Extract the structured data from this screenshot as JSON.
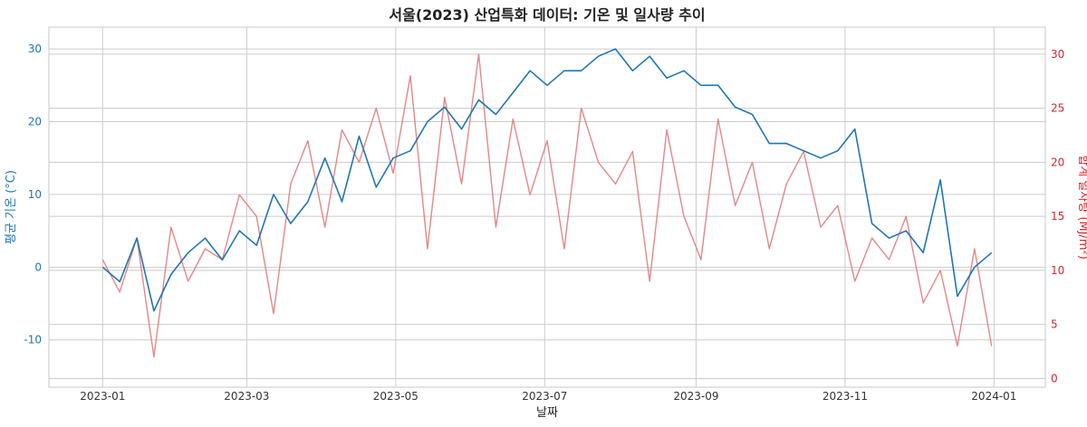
{
  "chart_data": {
    "type": "line",
    "title": "서울(2023) 산업특화 데이터: 기온 및 일사량 추이",
    "xlabel": "날짜",
    "ylabel_left": "평균 기온 (°C)",
    "ylabel_right": "합계 일사량 (MJ/m²)",
    "x_range": [
      "2022-12-10",
      "2024-01-22"
    ],
    "x_ticks": [
      "2023-01",
      "2023-03",
      "2023-05",
      "2023-07",
      "2023-09",
      "2023-11",
      "2024-01"
    ],
    "y_left_range": [
      -16.5,
      33
    ],
    "y_left_ticks": [
      -10,
      0,
      10,
      20,
      30
    ],
    "y_right_range": [
      -0.8,
      32.5
    ],
    "y_right_ticks": [
      0,
      5,
      10,
      15,
      20,
      25,
      30
    ],
    "grid": true,
    "colors": {
      "temperature": "#1f77b4",
      "radiation": "#e07b7b",
      "left_axis_text": "#1f77b4",
      "right_axis_text": "#d62728"
    },
    "series": [
      {
        "axis": "left",
        "color": "#1f77b4",
        "x": [
          "2023-01-01",
          "2023-01-08",
          "2023-01-15",
          "2023-01-22",
          "2023-01-29",
          "2023-02-05",
          "2023-02-12",
          "2023-02-19",
          "2023-02-26",
          "2023-03-05",
          "2023-03-12",
          "2023-03-19",
          "2023-03-26",
          "2023-04-02",
          "2023-04-09",
          "2023-04-16",
          "2023-04-23",
          "2023-04-30",
          "2023-05-07",
          "2023-05-14",
          "2023-05-21",
          "2023-05-28",
          "2023-06-04",
          "2023-06-11",
          "2023-06-18",
          "2023-06-25",
          "2023-07-02",
          "2023-07-09",
          "2023-07-16",
          "2023-07-23",
          "2023-07-30",
          "2023-08-06",
          "2023-08-13",
          "2023-08-20",
          "2023-08-27",
          "2023-09-03",
          "2023-09-10",
          "2023-09-17",
          "2023-09-24",
          "2023-10-01",
          "2023-10-08",
          "2023-10-15",
          "2023-10-22",
          "2023-10-29",
          "2023-11-05",
          "2023-11-12",
          "2023-11-19",
          "2023-11-26",
          "2023-12-03",
          "2023-12-10",
          "2023-12-17",
          "2023-12-24",
          "2023-12-31"
        ],
        "y": [
          0,
          -2,
          4,
          -6,
          -1,
          2,
          4,
          1,
          5,
          3,
          10,
          6,
          9,
          15,
          9,
          18,
          11,
          15,
          16,
          20,
          22,
          19,
          23,
          21,
          24,
          27,
          25,
          27,
          27,
          29,
          30,
          27,
          29,
          26,
          27,
          25,
          25,
          22,
          21,
          17,
          17,
          16,
          15,
          16,
          19,
          6,
          4,
          5,
          2,
          12,
          -4,
          0,
          2
        ]
      },
      {
        "axis": "right",
        "color": "#e07b7b",
        "x": [
          "2023-01-01",
          "2023-01-08",
          "2023-01-15",
          "2023-01-22",
          "2023-01-29",
          "2023-02-05",
          "2023-02-12",
          "2023-02-19",
          "2023-02-26",
          "2023-03-05",
          "2023-03-12",
          "2023-03-19",
          "2023-03-26",
          "2023-04-02",
          "2023-04-09",
          "2023-04-16",
          "2023-04-23",
          "2023-04-30",
          "2023-05-07",
          "2023-05-14",
          "2023-05-21",
          "2023-05-28",
          "2023-06-04",
          "2023-06-11",
          "2023-06-18",
          "2023-06-25",
          "2023-07-02",
          "2023-07-09",
          "2023-07-16",
          "2023-07-23",
          "2023-07-30",
          "2023-08-06",
          "2023-08-13",
          "2023-08-20",
          "2023-08-27",
          "2023-09-03",
          "2023-09-10",
          "2023-09-17",
          "2023-09-24",
          "2023-10-01",
          "2023-10-08",
          "2023-10-15",
          "2023-10-22",
          "2023-10-29",
          "2023-11-05",
          "2023-11-12",
          "2023-11-19",
          "2023-11-26",
          "2023-12-03",
          "2023-12-10",
          "2023-12-17",
          "2023-12-24",
          "2023-12-31"
        ],
        "y": [
          11,
          8,
          13,
          2,
          14,
          9,
          12,
          11,
          17,
          15,
          6,
          18,
          22,
          14,
          23,
          20,
          25,
          19,
          28,
          12,
          26,
          18,
          30,
          14,
          24,
          17,
          22,
          12,
          25,
          20,
          18,
          21,
          9,
          23,
          15,
          11,
          24,
          16,
          20,
          12,
          18,
          21,
          14,
          16,
          9,
          13,
          11,
          15,
          7,
          10,
          3,
          12,
          3
        ]
      }
    ]
  }
}
